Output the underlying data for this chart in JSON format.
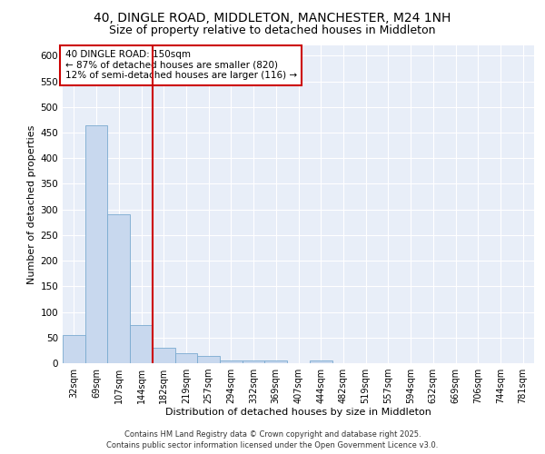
{
  "title_line1": "40, DINGLE ROAD, MIDDLETON, MANCHESTER, M24 1NH",
  "title_line2": "Size of property relative to detached houses in Middleton",
  "xlabel": "Distribution of detached houses by size in Middleton",
  "ylabel": "Number of detached properties",
  "footer_line1": "Contains HM Land Registry data © Crown copyright and database right 2025.",
  "footer_line2": "Contains public sector information licensed under the Open Government Licence v3.0.",
  "annotation_line1": "40 DINGLE ROAD: 150sqm",
  "annotation_line2": "← 87% of detached houses are smaller (820)",
  "annotation_line3": "12% of semi-detached houses are larger (116) →",
  "bar_color": "#c8d8ee",
  "bar_edge_color": "#7aaad0",
  "vline_color": "#cc0000",
  "vline_x": 3.5,
  "categories": [
    "32sqm",
    "69sqm",
    "107sqm",
    "144sqm",
    "182sqm",
    "219sqm",
    "257sqm",
    "294sqm",
    "332sqm",
    "369sqm",
    "407sqm",
    "444sqm",
    "482sqm",
    "519sqm",
    "557sqm",
    "594sqm",
    "632sqm",
    "669sqm",
    "706sqm",
    "744sqm",
    "781sqm"
  ],
  "values": [
    55,
    465,
    290,
    75,
    30,
    20,
    15,
    5,
    5,
    5,
    0,
    5,
    0,
    0,
    0,
    0,
    0,
    0,
    0,
    0,
    0
  ],
  "ylim": [
    0,
    620
  ],
  "yticks": [
    0,
    50,
    100,
    150,
    200,
    250,
    300,
    350,
    400,
    450,
    500,
    550,
    600
  ],
  "background_color": "#e8eef8",
  "grid_color": "#ffffff",
  "fig_bg": "#ffffff",
  "annotation_box_color": "#ffffff",
  "annotation_box_edge_color": "#cc0000",
  "title1_fontsize": 10,
  "title2_fontsize": 9,
  "tick_fontsize": 7,
  "label_fontsize": 8,
  "footer_fontsize": 6,
  "ann_fontsize": 7.5
}
